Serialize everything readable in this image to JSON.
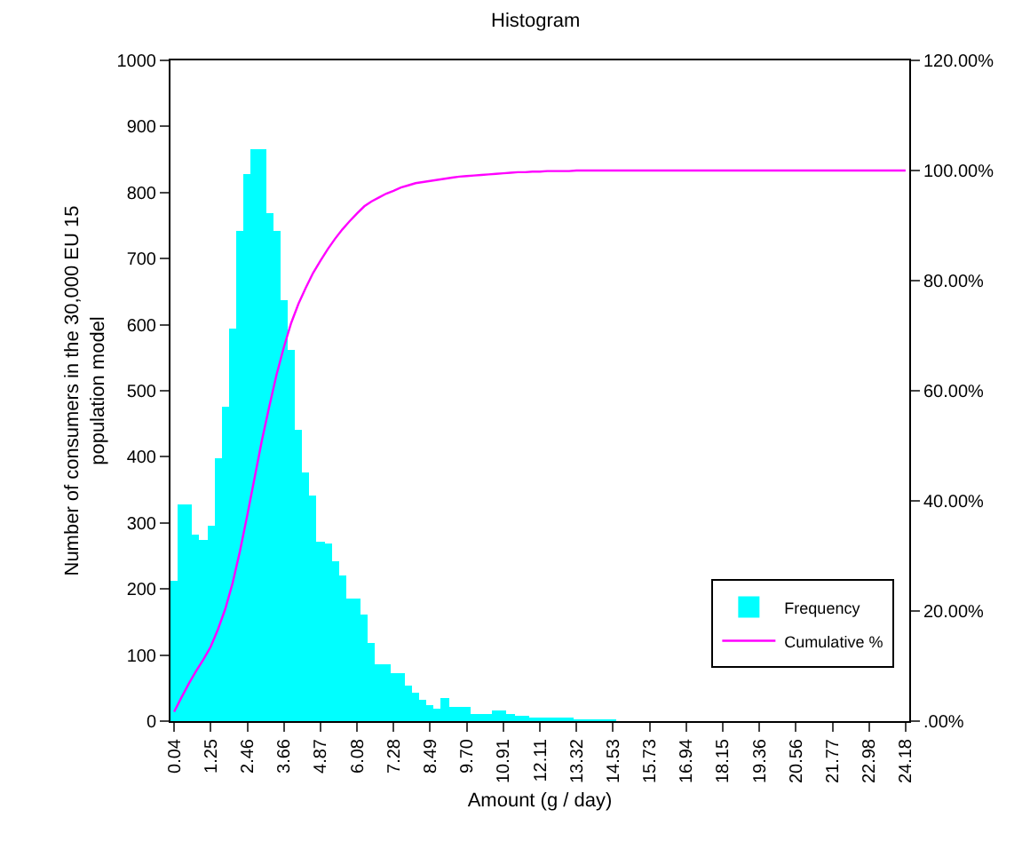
{
  "chart_data": {
    "type": "bar",
    "title": "Histogram",
    "xlabel": "Amount (g / day)",
    "ylabel": "Number of consumers in the 30,000 EU 15 population model",
    "categories": [
      "0.04",
      null,
      null,
      null,
      null,
      "1.25",
      null,
      null,
      null,
      null,
      "2.46",
      null,
      null,
      null,
      null,
      "3.66",
      null,
      null,
      null,
      null,
      "4.87",
      null,
      null,
      null,
      null,
      "6.08",
      null,
      null,
      null,
      null,
      "7.28",
      null,
      null,
      null,
      null,
      "8.49",
      null,
      null,
      null,
      null,
      "9.70",
      null,
      null,
      null,
      null,
      "10.91",
      null,
      null,
      null,
      null,
      "12.11",
      null,
      null,
      null,
      null,
      "13.32",
      null,
      null,
      null,
      null,
      "14.53",
      null,
      null,
      null,
      null,
      "15.73",
      null,
      null,
      null,
      null,
      "16.94",
      null,
      null,
      null,
      null,
      "18.15",
      null,
      null,
      null,
      null,
      "19.36",
      null,
      null,
      null,
      null,
      "20.56",
      null,
      null,
      null,
      null,
      "21.77",
      null,
      null,
      null,
      null,
      "22.98",
      null,
      null,
      null,
      null,
      "24.18"
    ],
    "series": [
      {
        "name": "Frequency",
        "color": "#00ffff",
        "values": [
          212,
          329,
          329,
          283,
          274,
          296,
          399,
          475,
          594,
          741,
          828,
          866,
          866,
          770,
          741,
          637,
          562,
          441,
          377,
          341,
          272,
          268,
          243,
          220,
          185,
          185,
          161,
          118,
          87,
          87,
          73,
          73,
          54,
          42,
          31,
          25,
          20,
          35,
          21,
          21,
          21,
          11,
          11,
          11,
          15,
          15,
          10,
          8,
          7,
          6,
          5,
          5,
          4,
          3,
          3,
          2,
          2,
          2,
          1,
          1,
          1,
          0,
          0,
          0,
          0,
          0,
          0,
          0,
          0,
          0,
          0,
          0,
          0,
          0,
          0,
          0,
          0,
          0,
          0,
          0,
          0,
          0,
          0,
          0,
          0,
          0,
          0,
          0,
          0,
          0,
          0,
          0,
          0,
          0,
          0,
          0,
          0,
          0,
          0,
          0,
          0
        ]
      },
      {
        "name": "Cumulative %",
        "type": "line",
        "axis": "y2",
        "color": "#ff00ff",
        "values": [
          1.7,
          4.3,
          6.8,
          9.1,
          11.2,
          13.5,
          16.7,
          20.4,
          25.1,
          30.9,
          37.4,
          44.2,
          51.0,
          57.1,
          62.9,
          67.9,
          72.3,
          75.8,
          78.7,
          81.4,
          83.6,
          85.7,
          87.6,
          89.3,
          90.8,
          92.2,
          93.5,
          94.4,
          95.1,
          95.8,
          96.3,
          96.9,
          97.3,
          97.7,
          97.9,
          98.1,
          98.3,
          98.5,
          98.7,
          98.9,
          99.0,
          99.1,
          99.2,
          99.3,
          99.4,
          99.5,
          99.6,
          99.7,
          99.7,
          99.8,
          99.8,
          99.9,
          99.9,
          99.9,
          99.9,
          100,
          100,
          100,
          100,
          100,
          100,
          100,
          100,
          100,
          100,
          100,
          100,
          100,
          100,
          100,
          100,
          100,
          100,
          100,
          100,
          100,
          100,
          100,
          100,
          100,
          100,
          100,
          100,
          100,
          100,
          100,
          100,
          100,
          100,
          100,
          100,
          100,
          100,
          100,
          100,
          100,
          100,
          100,
          100,
          100,
          100
        ]
      }
    ],
    "ylim": [
      0,
      1000
    ],
    "yticks": [
      0,
      100,
      200,
      300,
      400,
      500,
      600,
      700,
      800,
      900,
      1000
    ],
    "y2lim": [
      0,
      120
    ],
    "y2ticks": [
      {
        "value": 0,
        "label": ".00%"
      },
      {
        "value": 20,
        "label": "20.00%"
      },
      {
        "value": 40,
        "label": "40.00%"
      },
      {
        "value": 60,
        "label": "60.00%"
      },
      {
        "value": 80,
        "label": "80.00%"
      },
      {
        "value": 100,
        "label": "100.00%"
      },
      {
        "value": 120,
        "label": "120.00%"
      }
    ],
    "legend": "bottom right",
    "marker": "none",
    "line_style": "solid"
  }
}
